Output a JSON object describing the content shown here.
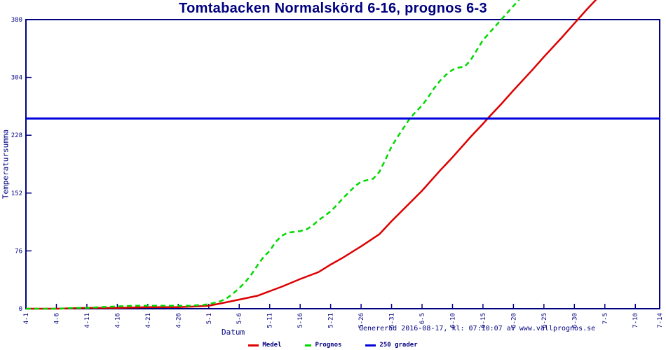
{
  "title": "Tomtabacken Normalskörd 6-16, prognos 6-3",
  "footer": {
    "generated": "Genererad 2016-08-17, kl: 07:10:07 av www.vallprognos.se"
  },
  "colors": {
    "text": "#000080",
    "axis": "#000080",
    "medel": "#dd0000",
    "prognos": "#00d900",
    "grader": "#0000dd",
    "background": "#ffffff"
  },
  "chart_data": {
    "type": "line",
    "title": "Tomtabacken Normalskörd 6-16, prognos 6-3",
    "xlabel": "Datum",
    "ylabel": "Temperatursumma",
    "ylim": [
      0,
      380
    ],
    "y_ticks": [
      0,
      76,
      152,
      228,
      304,
      380
    ],
    "x_tick_labels": [
      "4-1",
      "4-6",
      "4-11",
      "4-16",
      "4-21",
      "4-26",
      "5-1",
      "5-6",
      "5-11",
      "5-16",
      "5-21",
      "5-26",
      "5-31",
      "6-5",
      "6-10",
      "6-15",
      "6-20",
      "6-25",
      "6-30",
      "7-5",
      "7-10",
      "7-14"
    ],
    "x_tick_days": [
      0,
      5,
      10,
      15,
      20,
      25,
      30,
      35,
      40,
      45,
      50,
      55,
      60,
      65,
      70,
      75,
      80,
      85,
      90,
      95,
      100,
      104
    ],
    "grid": false,
    "legend_position": "bottom",
    "annotations": {
      "medel_reaches_250": "6-16",
      "prognos_reaches_250": "6-3",
      "threshold_value": 250
    },
    "series": [
      {
        "name": "Medel",
        "color": "#dd0000",
        "style": "solid",
        "points": [
          [
            0,
            0
          ],
          [
            5,
            0
          ],
          [
            10,
            1
          ],
          [
            15,
            1
          ],
          [
            20,
            2
          ],
          [
            25,
            2
          ],
          [
            28,
            3
          ],
          [
            30,
            4
          ],
          [
            32,
            7
          ],
          [
            35,
            12
          ],
          [
            38,
            17
          ],
          [
            40,
            23
          ],
          [
            42,
            29
          ],
          [
            45,
            39
          ],
          [
            48,
            48
          ],
          [
            50,
            58
          ],
          [
            52,
            67
          ],
          [
            55,
            82
          ],
          [
            58,
            98
          ],
          [
            60,
            115
          ],
          [
            62,
            131
          ],
          [
            65,
            155
          ],
          [
            68,
            182
          ],
          [
            70,
            199
          ],
          [
            73,
            226
          ],
          [
            75,
            243
          ],
          [
            76,
            252
          ],
          [
            78,
            269
          ],
          [
            80,
            287
          ],
          [
            83,
            313
          ],
          [
            85,
            331
          ],
          [
            88,
            357
          ],
          [
            90,
            375
          ],
          [
            92,
            393
          ],
          [
            94,
            410
          ]
        ]
      },
      {
        "name": "Prognos",
        "color": "#00d900",
        "style": "dashed",
        "points": [
          [
            0,
            0
          ],
          [
            3,
            0
          ],
          [
            5,
            0
          ],
          [
            8,
            1
          ],
          [
            10,
            1
          ],
          [
            12,
            2
          ],
          [
            15,
            3
          ],
          [
            18,
            4
          ],
          [
            20,
            4
          ],
          [
            23,
            4
          ],
          [
            25,
            4
          ],
          [
            27,
            4
          ],
          [
            29,
            5
          ],
          [
            30,
            6
          ],
          [
            31,
            8
          ],
          [
            32,
            10
          ],
          [
            33,
            14
          ],
          [
            34,
            20
          ],
          [
            35,
            27
          ],
          [
            36,
            35
          ],
          [
            37,
            45
          ],
          [
            38,
            57
          ],
          [
            39,
            68
          ],
          [
            40,
            76
          ],
          [
            41,
            88
          ],
          [
            42,
            96
          ],
          [
            43,
            100
          ],
          [
            44,
            101
          ],
          [
            45,
            102
          ],
          [
            46,
            104
          ],
          [
            47,
            109
          ],
          [
            48,
            116
          ],
          [
            49,
            122
          ],
          [
            50,
            128
          ],
          [
            51,
            136
          ],
          [
            52,
            145
          ],
          [
            53,
            153
          ],
          [
            54,
            161
          ],
          [
            55,
            167
          ],
          [
            56,
            169
          ],
          [
            57,
            171
          ],
          [
            58,
            180
          ],
          [
            59,
            196
          ],
          [
            60,
            213
          ],
          [
            61,
            226
          ],
          [
            62,
            238
          ],
          [
            63,
            250
          ],
          [
            64,
            259
          ],
          [
            65,
            267
          ],
          [
            66,
            278
          ],
          [
            67,
            290
          ],
          [
            68,
            300
          ],
          [
            69,
            308
          ],
          [
            70,
            314
          ],
          [
            71,
            317
          ],
          [
            72,
            318
          ],
          [
            73,
            327
          ],
          [
            74,
            340
          ],
          [
            75,
            353
          ],
          [
            76,
            362
          ],
          [
            77,
            371
          ],
          [
            78,
            380
          ],
          [
            79,
            389
          ],
          [
            80,
            398
          ],
          [
            81,
            407
          ]
        ]
      },
      {
        "name": "250 grader",
        "color": "#0000dd",
        "style": "solid",
        "points": [
          [
            0,
            250
          ],
          [
            104,
            250
          ]
        ]
      }
    ]
  }
}
